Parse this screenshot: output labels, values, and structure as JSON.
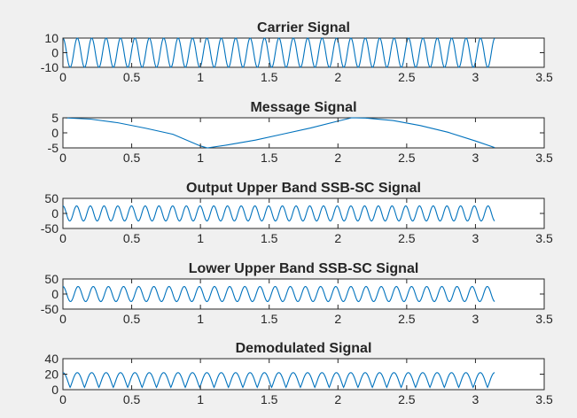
{
  "colors": {
    "background": "#f0f0f0",
    "axes_face": "#ffffff",
    "axis": "#262626",
    "series": "#0072bd"
  },
  "chart_data": [
    {
      "type": "line",
      "title": "Carrier Signal",
      "xlim": [
        0,
        3.5
      ],
      "ylim": [
        -10,
        10
      ],
      "xticks": [
        0,
        0.5,
        1,
        1.5,
        2,
        2.5,
        3,
        3.5
      ],
      "xtick_labels": [
        "0",
        "0.5",
        "1",
        "1.5",
        "2",
        "2.5",
        "3",
        "3.5"
      ],
      "yticks": [
        10,
        0,
        -10
      ],
      "ytick_labels": [
        "10",
        "0",
        "-10"
      ],
      "grid": false,
      "series": [
        {
          "signal": "10*cos(60*x)",
          "x_range": [
            0,
            3.14
          ],
          "amplitude": 10,
          "cycles_shown": 30
        }
      ]
    },
    {
      "type": "line",
      "title": "Message Signal",
      "xlim": [
        0,
        3.5
      ],
      "ylim": [
        -5,
        5
      ],
      "xticks": [
        0,
        0.5,
        1,
        1.5,
        2,
        2.5,
        3,
        3.5
      ],
      "xtick_labels": [
        "0",
        "0.5",
        "1",
        "1.5",
        "2",
        "2.5",
        "3",
        "3.5"
      ],
      "yticks": [
        5,
        0,
        -5
      ],
      "ytick_labels": [
        "5",
        "0",
        "-5"
      ],
      "grid": false,
      "series": [
        {
          "x": [
            0,
            0.2,
            0.4,
            0.6,
            0.8,
            1.0,
            1.05,
            1.2,
            1.4,
            1.6,
            1.8,
            2.0,
            2.1,
            2.2,
            2.4,
            2.6,
            2.8,
            3.0,
            3.14
          ],
          "y": [
            5,
            4.56,
            3.35,
            1.55,
            -0.48,
            -4.36,
            -5,
            -4.0,
            -2.4,
            -0.4,
            1.6,
            3.9,
            5,
            4.9,
            4.1,
            2.4,
            0.2,
            -2.7,
            -4.9
          ]
        }
      ]
    },
    {
      "type": "line",
      "title": "Output Upper Band SSB-SC Signal",
      "xlim": [
        0,
        3.5
      ],
      "ylim": [
        -50,
        50
      ],
      "xticks": [
        0,
        0.5,
        1,
        1.5,
        2,
        2.5,
        3,
        3.5
      ],
      "xtick_labels": [
        "0",
        "0.5",
        "1",
        "1.5",
        "2",
        "2.5",
        "3",
        "3.5"
      ],
      "yticks": [
        50,
        0,
        -50
      ],
      "ytick_labels": [
        "50",
        "0",
        "-50"
      ],
      "grid": false,
      "series": [
        {
          "signal": "25*cos(63*x)",
          "x_range": [
            0,
            3.14
          ],
          "amplitude": 25,
          "cycles_shown": 31
        }
      ]
    },
    {
      "type": "line",
      "title": "Lower Upper Band SSB-SC Signal",
      "xlim": [
        0,
        3.5
      ],
      "ylim": [
        -50,
        50
      ],
      "xticks": [
        0,
        0.5,
        1,
        1.5,
        2,
        2.5,
        3,
        3.5
      ],
      "xtick_labels": [
        "0",
        "0.5",
        "1",
        "1.5",
        "2",
        "2.5",
        "3",
        "3.5"
      ],
      "yticks": [
        50,
        0,
        -50
      ],
      "ytick_labels": [
        "50",
        "0",
        "-50"
      ],
      "grid": false,
      "series": [
        {
          "signal": "25*cos(57*x)",
          "x_range": [
            0,
            3.14
          ],
          "amplitude": 25,
          "cycles_shown": 28
        }
      ]
    },
    {
      "type": "line",
      "title": "Demodulated Signal",
      "xlim": [
        0,
        3.5
      ],
      "ylim": [
        0,
        40
      ],
      "xticks": [
        0,
        0.5,
        1,
        1.5,
        2,
        2.5,
        3,
        3.5
      ],
      "xtick_labels": [
        "0",
        "0.5",
        "1",
        "1.5",
        "2",
        "2.5",
        "3",
        "3.5"
      ],
      "yticks": [
        40,
        20,
        0
      ],
      "ytick_labels": [
        "40",
        "20",
        "0"
      ],
      "grid": false,
      "series": [
        {
          "signal": "rectified sawtooth-like ripple",
          "x_range": [
            0,
            3.14
          ],
          "min": 3,
          "max": 22,
          "cycles_shown": 30
        }
      ]
    }
  ]
}
